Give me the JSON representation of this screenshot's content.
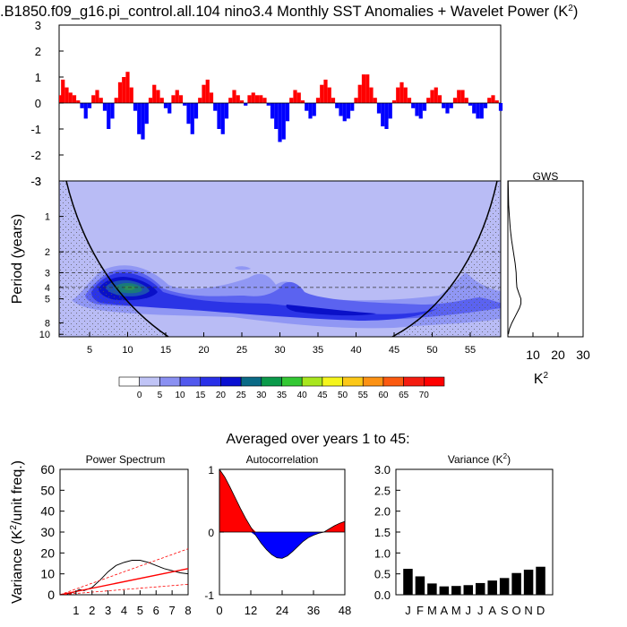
{
  "title": {
    "main": ".B1850.f09_g16.pi_control.all.104 nino3.4 Monthly SST Anomalies + Wavelet Power (K",
    "sup": "2",
    "close": ")"
  },
  "averaged_label": "Averaged over years 1 to 45:",
  "colors": {
    "positive": "#ff0000",
    "negative": "#0000ff",
    "coi_line": "#000000",
    "ws_fill": "#b9bcf5",
    "ws_contours": [
      "#9097f4",
      "#5b63f0",
      "#2b34e6",
      "#0a10c8",
      "#1b4fb2",
      "#1a7a7a",
      "#2b8d5a"
    ],
    "colorbar": [
      "#ffffff",
      "#c0c4f6",
      "#8a90f2",
      "#5259ee",
      "#2930e8",
      "#0a10d2",
      "#0a6a86",
      "#0b9a4a",
      "#34c834",
      "#a8e61e",
      "#f5f51c",
      "#fcc818",
      "#fc9214",
      "#fb5a10",
      "#f41c10",
      "#ff0000"
    ],
    "sig_line": "#ff0000"
  },
  "chart_data": [
    {
      "id": "sst_anomaly",
      "type": "bar",
      "title": "",
      "xlabel": "",
      "ylabel": "",
      "xlim": [
        1,
        59
      ],
      "ylim": [
        -3,
        3
      ],
      "yticks": [
        -3,
        -2,
        -1,
        0,
        1,
        2,
        3
      ],
      "x_years": [
        1,
        1.5,
        2,
        2.5,
        3,
        3.5,
        4,
        4.5,
        5,
        5.5,
        6,
        6.5,
        7,
        7.5,
        8,
        8.5,
        9,
        9.5,
        10,
        10.5,
        11,
        11.5,
        12,
        12.5,
        13,
        13.5,
        14,
        14.5,
        15,
        15.5,
        16,
        16.5,
        17,
        17.5,
        18,
        18.5,
        19,
        19.5,
        20,
        20.5,
        21,
        21.5,
        22,
        22.5,
        23,
        23.5,
        24,
        24.5,
        25,
        25.5,
        26,
        26.5,
        27,
        27.5,
        28,
        28.5,
        29,
        29.5,
        30,
        30.5,
        31,
        31.5,
        32,
        32.5,
        33,
        33.5,
        34,
        34.5,
        35,
        35.5,
        36,
        36.5,
        37,
        37.5,
        38,
        38.5,
        39,
        39.5,
        40,
        40.5,
        41,
        41.5,
        42,
        42.5,
        43,
        43.5,
        44,
        44.5,
        45,
        45.5,
        46,
        46.5,
        47,
        47.5,
        48,
        48.5,
        49,
        49.5,
        50,
        50.5,
        51,
        51.5,
        52,
        52.5,
        53,
        53.5,
        54,
        54.5,
        55,
        55.5,
        56,
        56.5,
        57,
        57.5,
        58,
        58.5,
        59
      ],
      "values": [
        0.3,
        0.9,
        0.6,
        0.4,
        0.3,
        0.1,
        -0.2,
        -0.6,
        -0.2,
        0.3,
        0.5,
        0.2,
        -0.3,
        -1.0,
        -0.6,
        0.2,
        0.8,
        1.0,
        1.2,
        0.6,
        -0.3,
        -1.2,
        -1.4,
        -0.8,
        0.2,
        0.7,
        0.5,
        0.2,
        -0.2,
        -0.4,
        0.3,
        0.5,
        0.3,
        -0.1,
        -0.8,
        -1.2,
        -0.6,
        0.2,
        0.7,
        0.9,
        0.4,
        -0.3,
        -1.0,
        -1.2,
        -0.6,
        0.2,
        0.5,
        0.3,
        0.1,
        -0.1,
        0.3,
        0.4,
        0.3,
        0.3,
        0.2,
        -0.1,
        -0.6,
        -1.0,
        -1.5,
        -1.4,
        -0.7,
        0.2,
        0.5,
        0.4,
        0.1,
        -0.3,
        -0.6,
        -0.5,
        0.2,
        0.7,
        0.9,
        0.6,
        0.2,
        -0.2,
        -0.5,
        -0.7,
        -0.6,
        -0.3,
        0.2,
        0.7,
        1.1,
        1.1,
        0.6,
        0.2,
        -0.4,
        -0.9,
        -1.0,
        -0.6,
        0.1,
        0.6,
        0.8,
        0.6,
        0.2,
        -0.2,
        -0.5,
        -0.6,
        -0.3,
        0.2,
        0.5,
        0.6,
        0.3,
        -0.2,
        -0.4,
        -0.2,
        0.2,
        0.5,
        0.5,
        0.2,
        -0.1,
        -0.4,
        -0.6,
        -0.6,
        -0.2,
        0.2,
        0.3,
        0.1,
        -0.3
      ]
    },
    {
      "id": "wavelet_power",
      "type": "heatmap",
      "xlabel": "",
      "ylabel": "Period (years)",
      "xlim": [
        1,
        59
      ],
      "xticks": [
        5,
        10,
        15,
        20,
        25,
        30,
        35,
        40,
        45,
        50,
        55
      ],
      "yticks": [
        1,
        2,
        3,
        4,
        5,
        8,
        10
      ],
      "period_range": [
        0.5,
        10.5
      ],
      "log_y": true,
      "dashed_periods": [
        2,
        3,
        4
      ],
      "colorbar_levels": [
        0,
        5,
        10,
        15,
        20,
        25,
        30,
        35,
        40,
        45,
        50,
        55,
        60,
        65,
        70
      ],
      "units": "K²"
    },
    {
      "id": "global_wavelet_spectrum",
      "type": "line",
      "title": "GWS",
      "xlabel": "K",
      "xlabel_sup": "2",
      "xlim": [
        0,
        30
      ],
      "xticks": [
        10,
        20,
        30
      ],
      "series": [
        {
          "periods": [
            0.5,
            0.8,
            1.0,
            1.3,
            1.6,
            2.0,
            2.5,
            3.0,
            3.5,
            4.0,
            4.5,
            5.0,
            5.5,
            6.0,
            7.0,
            8.0,
            9.0,
            10.0
          ],
          "values": [
            0.1,
            0.3,
            0.6,
            1.0,
            1.5,
            2.2,
            2.9,
            3.3,
            3.4,
            3.6,
            4.4,
            5.2,
            5.2,
            4.6,
            3.0,
            1.6,
            0.6,
            0.2
          ]
        }
      ]
    },
    {
      "id": "power_spectrum",
      "type": "line",
      "title": "Power Spectrum",
      "ylabel": "Variance (K",
      "ylabel_sup": "2",
      "ylabel_close": "/unit freq.)",
      "xlim": [
        0,
        8
      ],
      "ylim": [
        0,
        60
      ],
      "xticks": [
        1,
        2,
        3,
        4,
        5,
        6,
        7,
        8
      ],
      "yticks": [
        0,
        10,
        20,
        30,
        40,
        50,
        60
      ],
      "series": [
        {
          "name": "spectrum",
          "x": [
            0,
            0.5,
            1.0,
            1.2,
            1.5,
            2.0,
            2.5,
            3.0,
            3.5,
            4.0,
            4.5,
            5.0,
            5.5,
            6.0,
            6.5,
            7.0,
            7.5,
            8.0
          ],
          "y": [
            0,
            0.5,
            1.5,
            2.5,
            2.0,
            3.5,
            7.0,
            11.0,
            14.0,
            15.5,
            16.5,
            16.5,
            15.5,
            14.0,
            12.5,
            11.5,
            10.5,
            10.0
          ]
        },
        {
          "name": "red_noise",
          "x": [
            0,
            8
          ],
          "y": [
            0,
            12.5
          ]
        },
        {
          "name": "upper_bound",
          "x": [
            0,
            8
          ],
          "y": [
            0,
            22
          ]
        },
        {
          "name": "lower_bound",
          "x": [
            0,
            8
          ],
          "y": [
            0,
            5
          ]
        }
      ]
    },
    {
      "id": "autocorrelation",
      "type": "area",
      "title": "Autocorrelation",
      "xlim": [
        0,
        48
      ],
      "ylim": [
        -1,
        1
      ],
      "xticks": [
        0,
        12,
        24,
        36,
        48
      ],
      "yticks": [
        -1,
        0,
        1
      ],
      "x": [
        0,
        2,
        4,
        6,
        8,
        10,
        12,
        14,
        16,
        18,
        20,
        22,
        24,
        26,
        28,
        30,
        32,
        34,
        36,
        38,
        40,
        42,
        44,
        46,
        48
      ],
      "y": [
        1.0,
        0.88,
        0.72,
        0.55,
        0.38,
        0.22,
        0.08,
        -0.06,
        -0.18,
        -0.28,
        -0.36,
        -0.41,
        -0.42,
        -0.38,
        -0.31,
        -0.23,
        -0.15,
        -0.09,
        -0.05,
        -0.02,
        0.0,
        0.05,
        0.1,
        0.14,
        0.17
      ]
    },
    {
      "id": "monthly_variance",
      "type": "bar",
      "title": "Variance (K",
      "title_sup": "2",
      "title_close": ")",
      "categories": [
        "J",
        "F",
        "M",
        "A",
        "M",
        "J",
        "J",
        "A",
        "S",
        "O",
        "N",
        "D"
      ],
      "values": [
        0.62,
        0.44,
        0.27,
        0.2,
        0.21,
        0.23,
        0.28,
        0.34,
        0.4,
        0.52,
        0.6,
        0.67
      ],
      "ylim": [
        0,
        3.0
      ],
      "yticks": [
        "0.0",
        "0.5",
        "1.0",
        "1.5",
        "2.0",
        "2.5",
        "3.0"
      ]
    }
  ]
}
